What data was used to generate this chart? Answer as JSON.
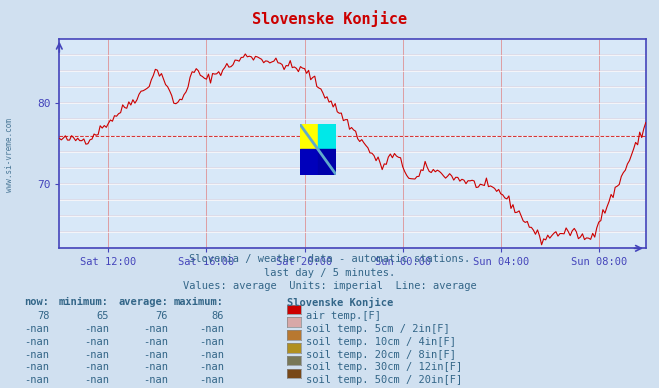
{
  "title": "Slovenske Konjice",
  "title_color": "#cc0000",
  "bg_color": "#d0e0f0",
  "plot_bg_color": "#d8e8f8",
  "line_color": "#cc0000",
  "axis_color": "#4444bb",
  "text_color": "#336688",
  "ylabel_text": "www.si-vreme.com",
  "subtitle1": "Slovenia / weather data - automatic stations.",
  "subtitle2": "last day / 5 minutes.",
  "subtitle3": "Values: average  Units: imperial  Line: average",
  "xtick_labels": [
    "Sat 12:00",
    "Sat 16:00",
    "Sat 20:00",
    "Sun 00:00",
    "Sun 04:00",
    "Sun 08:00"
  ],
  "ytick_values": [
    70,
    80
  ],
  "ymin": 62,
  "ymax": 88,
  "average_line": 76,
  "now": 78,
  "minimum": 65,
  "average": 76,
  "maximum": 86,
  "legend_items": [
    {
      "label": "air temp.[F]",
      "color": "#cc0000"
    },
    {
      "label": "soil temp. 5cm / 2in[F]",
      "color": "#d8a8a8"
    },
    {
      "label": "soil temp. 10cm / 4in[F]",
      "color": "#b87830"
    },
    {
      "label": "soil temp. 20cm / 8in[F]",
      "color": "#b09020"
    },
    {
      "label": "soil temp. 30cm / 12in[F]",
      "color": "#787858"
    },
    {
      "label": "soil temp. 50cm / 20in[F]",
      "color": "#784818"
    }
  ],
  "legend_values": [
    {
      "now": "78",
      "min": "65",
      "avg": "76",
      "max": "86"
    },
    {
      "now": "-nan",
      "min": "-nan",
      "avg": "-nan",
      "max": "-nan"
    },
    {
      "now": "-nan",
      "min": "-nan",
      "avg": "-nan",
      "max": "-nan"
    },
    {
      "now": "-nan",
      "min": "-nan",
      "avg": "-nan",
      "max": "-nan"
    },
    {
      "now": "-nan",
      "min": "-nan",
      "avg": "-nan",
      "max": "-nan"
    },
    {
      "now": "-nan",
      "min": "-nan",
      "avg": "-nan",
      "max": "-nan"
    }
  ]
}
